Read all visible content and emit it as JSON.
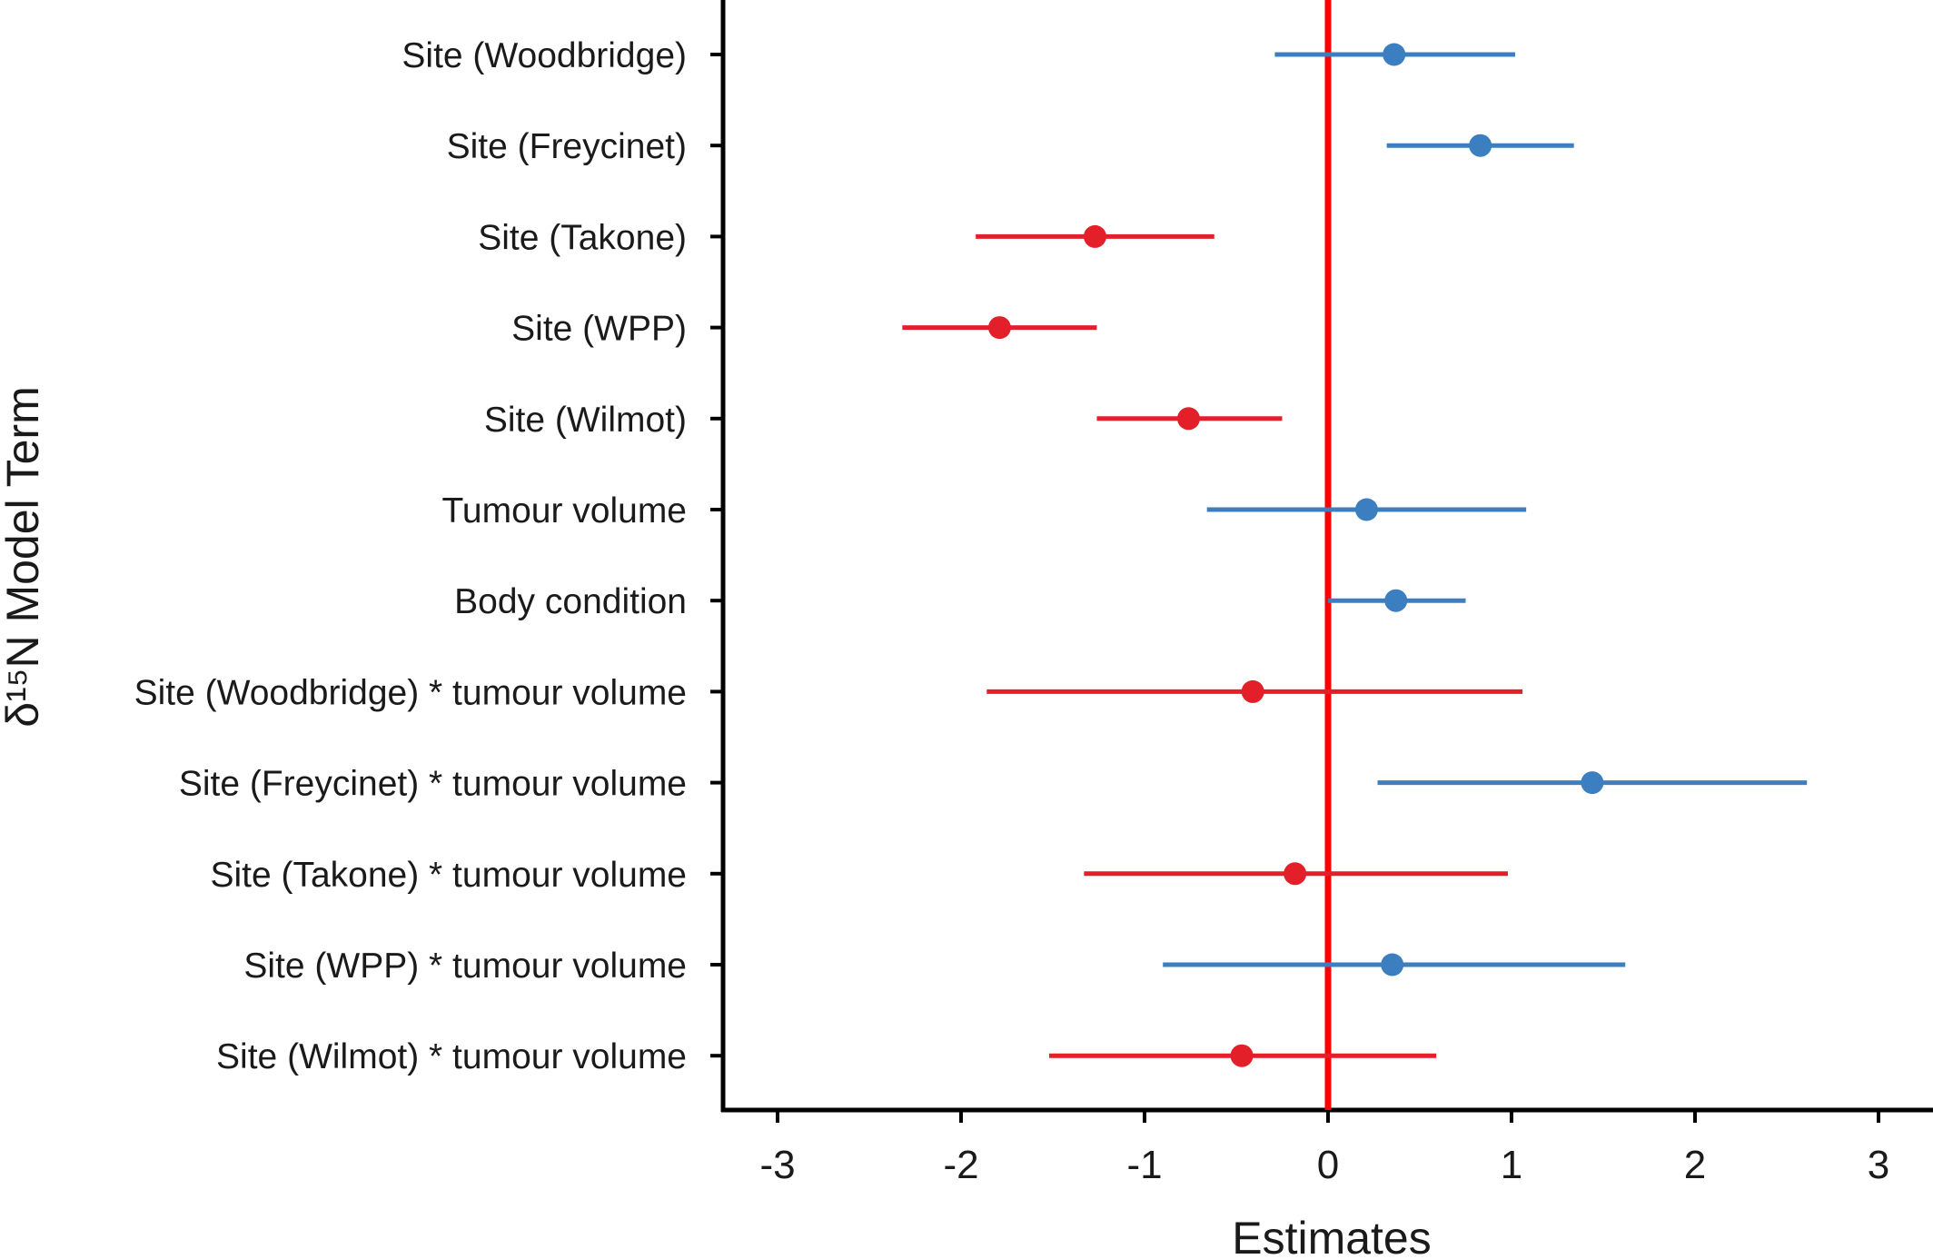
{
  "chart_data": {
    "type": "forest",
    "title": "",
    "xlabel": "Estimates",
    "ylabel": "δ¹⁵N Model Term",
    "xlim": [
      -3.3,
      3.3
    ],
    "xticks": [
      "-3",
      "-2",
      "-1",
      "0",
      "1",
      "2",
      "3"
    ],
    "reference_line": 0,
    "grid": false,
    "legend": "none",
    "colors": {
      "positive": "#3b7fc0",
      "negative": "#e3202a",
      "reference": "#ff0000"
    },
    "terms": [
      {
        "label": "Site (Woodbridge)",
        "estimate": 0.36,
        "lower": -0.29,
        "upper": 1.02
      },
      {
        "label": "Site (Freycinet)",
        "estimate": 0.83,
        "lower": 0.32,
        "upper": 1.34
      },
      {
        "label": "Site (Takone)",
        "estimate": -1.27,
        "lower": -1.92,
        "upper": -0.62
      },
      {
        "label": "Site (WPP)",
        "estimate": -1.79,
        "lower": -2.32,
        "upper": -1.26
      },
      {
        "label": "Site (Wilmot)",
        "estimate": -0.76,
        "lower": -1.26,
        "upper": -0.25
      },
      {
        "label": "Tumour volume",
        "estimate": 0.21,
        "lower": -0.66,
        "upper": 1.08
      },
      {
        "label": "Body condition",
        "estimate": 0.37,
        "lower": 0.0,
        "upper": 0.75
      },
      {
        "label": "Site (Woodbridge) * tumour volume",
        "estimate": -0.41,
        "lower": -1.86,
        "upper": 1.06
      },
      {
        "label": "Site (Freycinet) * tumour volume",
        "estimate": 1.44,
        "lower": 0.27,
        "upper": 2.61
      },
      {
        "label": "Site (Takone) * tumour volume",
        "estimate": -0.18,
        "lower": -1.33,
        "upper": 0.98
      },
      {
        "label": "Site (WPP) * tumour volume",
        "estimate": 0.35,
        "lower": -0.9,
        "upper": 1.62
      },
      {
        "label": "Site (Wilmot) * tumour volume",
        "estimate": -0.47,
        "lower": -1.52,
        "upper": 0.59
      }
    ]
  }
}
